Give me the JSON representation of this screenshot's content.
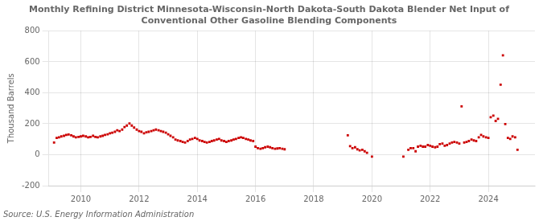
{
  "chart_data": {
    "type": "scatter",
    "title": "Monthly Refining District Minnesota-Wisconsin-North Dakota-South Dakota Blender Net Input of\nConventional Other Gasoline Blending Components",
    "ylabel": "Thousand Barrels",
    "source": "Source: U.S. Energy Information Administration",
    "color": "#cc0000",
    "marker": "square",
    "grid": true,
    "xlim": [
      2008.9,
      2025.6
    ],
    "xticks": [
      2010,
      2012,
      2014,
      2016,
      2018,
      2020,
      2022,
      2024
    ],
    "ylim": [
      -200,
      800
    ],
    "yticks": [
      -200,
      0,
      200,
      400,
      600,
      800
    ],
    "x": [
      2009.08,
      2009.17,
      2009.25,
      2009.33,
      2009.42,
      2009.5,
      2009.58,
      2009.67,
      2009.75,
      2009.83,
      2009.92,
      2010.0,
      2010.08,
      2010.17,
      2010.25,
      2010.33,
      2010.42,
      2010.5,
      2010.58,
      2010.67,
      2010.75,
      2010.83,
      2010.92,
      2011.0,
      2011.08,
      2011.17,
      2011.25,
      2011.33,
      2011.42,
      2011.5,
      2011.58,
      2011.67,
      2011.75,
      2011.83,
      2011.92,
      2012.0,
      2012.08,
      2012.17,
      2012.25,
      2012.33,
      2012.42,
      2012.5,
      2012.58,
      2012.67,
      2012.75,
      2012.83,
      2012.92,
      2013.0,
      2013.08,
      2013.17,
      2013.25,
      2013.33,
      2013.42,
      2013.5,
      2013.58,
      2013.67,
      2013.75,
      2013.83,
      2013.92,
      2014.0,
      2014.08,
      2014.17,
      2014.25,
      2014.33,
      2014.42,
      2014.5,
      2014.58,
      2014.67,
      2014.75,
      2014.83,
      2014.92,
      2015.0,
      2015.08,
      2015.17,
      2015.25,
      2015.33,
      2015.42,
      2015.5,
      2015.58,
      2015.67,
      2015.75,
      2015.83,
      2015.92,
      2016.0,
      2016.08,
      2016.17,
      2016.25,
      2016.33,
      2016.42,
      2016.5,
      2016.58,
      2016.67,
      2016.75,
      2016.83,
      2016.92,
      2017.0,
      2019.17,
      2019.25,
      2019.33,
      2019.42,
      2019.5,
      2019.58,
      2019.67,
      2019.75,
      2019.83,
      2020.0,
      2021.08,
      2021.25,
      2021.33,
      2021.42,
      2021.5,
      2021.58,
      2021.67,
      2021.75,
      2021.83,
      2021.92,
      2022.0,
      2022.08,
      2022.17,
      2022.25,
      2022.33,
      2022.42,
      2022.5,
      2022.58,
      2022.67,
      2022.75,
      2022.83,
      2022.92,
      2023.0,
      2023.08,
      2023.17,
      2023.25,
      2023.33,
      2023.42,
      2023.5,
      2023.58,
      2023.67,
      2023.75,
      2023.83,
      2023.92,
      2024.0,
      2024.08,
      2024.17,
      2024.25,
      2024.33,
      2024.42,
      2024.5,
      2024.58,
      2024.67,
      2024.75,
      2024.83,
      2024.92,
      2025.0
    ],
    "values": [
      78,
      108,
      112,
      118,
      122,
      128,
      130,
      125,
      118,
      112,
      115,
      118,
      122,
      118,
      112,
      115,
      122,
      115,
      112,
      118,
      122,
      128,
      132,
      138,
      142,
      148,
      158,
      152,
      162,
      178,
      188,
      202,
      188,
      175,
      162,
      152,
      148,
      138,
      145,
      148,
      152,
      158,
      162,
      158,
      152,
      148,
      142,
      132,
      122,
      112,
      98,
      92,
      88,
      82,
      78,
      88,
      98,
      102,
      108,
      102,
      92,
      88,
      82,
      78,
      82,
      88,
      92,
      98,
      102,
      92,
      88,
      82,
      88,
      92,
      98,
      102,
      108,
      112,
      108,
      102,
      98,
      92,
      88,
      52,
      42,
      38,
      42,
      48,
      52,
      48,
      42,
      38,
      40,
      42,
      38,
      35,
      125,
      55,
      42,
      48,
      35,
      28,
      32,
      22,
      12,
      -12,
      -12,
      32,
      42,
      42,
      22,
      52,
      58,
      52,
      52,
      62,
      58,
      52,
      48,
      52,
      68,
      72,
      58,
      62,
      72,
      78,
      82,
      78,
      72,
      312,
      78,
      82,
      88,
      98,
      92,
      88,
      112,
      128,
      118,
      112,
      108,
      242,
      252,
      218,
      232,
      452,
      642,
      198,
      108,
      102,
      118,
      112,
      32
    ]
  }
}
